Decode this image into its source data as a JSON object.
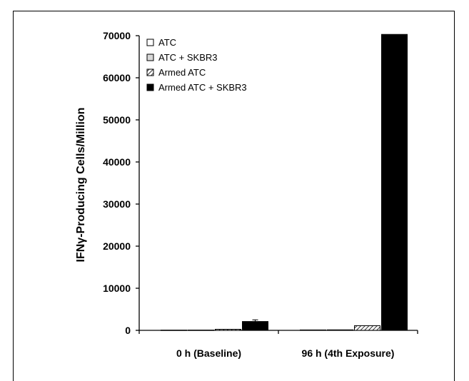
{
  "chart_data": {
    "type": "bar",
    "ylabel": "IFNγ-Producing Cells/Million",
    "xlabel": "",
    "categories": [
      "0 h (Baseline)",
      "96 h (4th Exposure)"
    ],
    "ylim": [
      0,
      70000
    ],
    "yticks": [
      0,
      10000,
      20000,
      30000,
      40000,
      50000,
      60000,
      70000
    ],
    "grid": false,
    "legend_position": "top-left",
    "series": [
      {
        "name": "ATC",
        "values": [
          50,
          100
        ],
        "fill": "white"
      },
      {
        "name": "ATC + SKBR3",
        "values": [
          60,
          120
        ],
        "fill": "light-gray"
      },
      {
        "name": "Armed ATC",
        "values": [
          250,
          1100
        ],
        "fill": "hatched"
      },
      {
        "name": "Armed ATC + SKBR3",
        "values": [
          2100,
          70300
        ],
        "fill": "black"
      }
    ],
    "error_bars": [
      [
        0,
        0,
        0,
        400
      ],
      [
        0,
        0,
        0,
        0
      ]
    ]
  }
}
